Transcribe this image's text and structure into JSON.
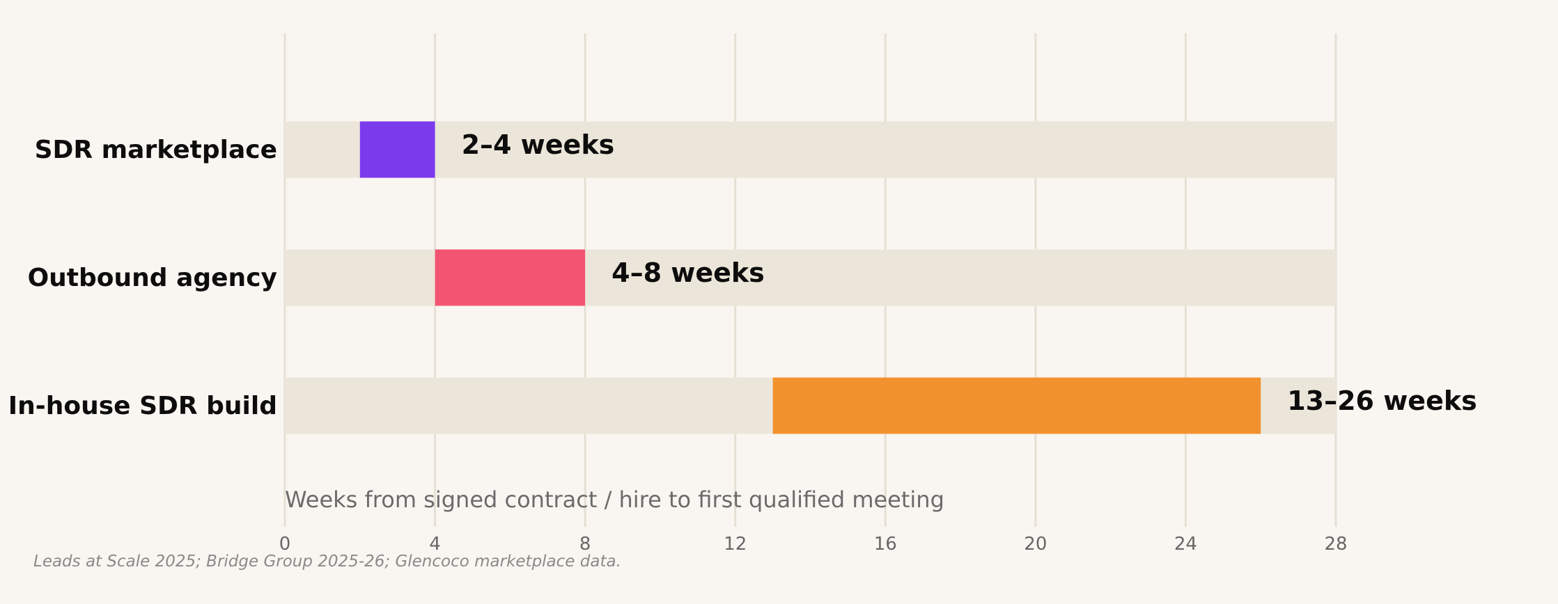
{
  "chart_data": {
    "type": "bar",
    "orientation": "horizontal-range",
    "categories": [
      "SDR marketplace",
      "Outbound agency",
      "In-house SDR build"
    ],
    "ranges": [
      {
        "start": 2,
        "end": 4,
        "label": "2–4 weeks",
        "color": "#7c3aed"
      },
      {
        "start": 4,
        "end": 8,
        "label": "4–8 weeks",
        "color": "#f25572"
      },
      {
        "start": 13,
        "end": 26,
        "label": "13–26 weeks",
        "color": "#f2922e"
      }
    ],
    "track_color": "#ece6da",
    "grid_color": "#e6e0d4",
    "xlim": [
      0,
      28
    ],
    "xticks": [
      0,
      4,
      8,
      12,
      16,
      20,
      24,
      28
    ],
    "grid": true,
    "xlabel": "Weeks from signed contract / hire to first qualified meeting",
    "source": "Leads at Scale 2025; Bridge Group 2025-26; Glencoco marketplace data."
  }
}
